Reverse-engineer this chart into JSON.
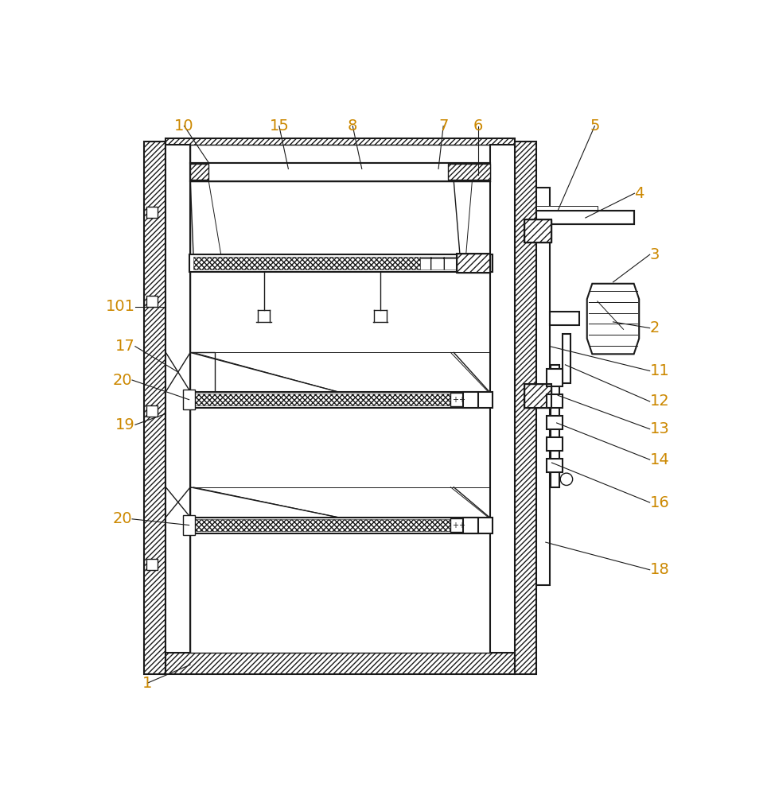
{
  "bg_color": "#ffffff",
  "line_color": "#1a1a1a",
  "label_color": "#cc8800",
  "fig_width": 9.7,
  "fig_height": 10.0,
  "label_fontsize": 14
}
